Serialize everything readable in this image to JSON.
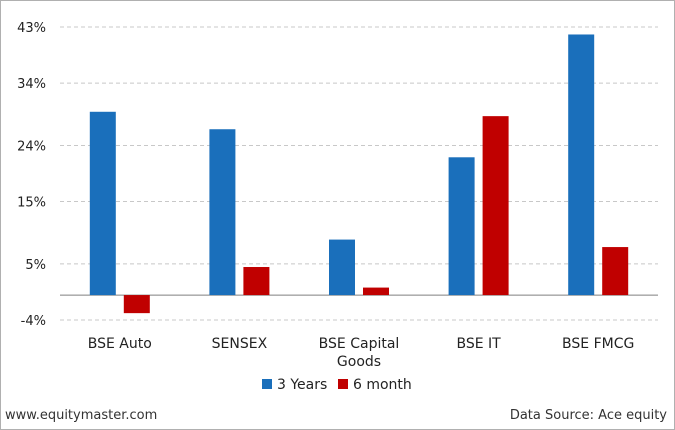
{
  "chart_data": {
    "type": "bar",
    "categories": [
      "BSE Auto",
      "SENSEX",
      "BSE Capital Goods",
      "BSE IT",
      "BSE FMCG"
    ],
    "category_label_lines": [
      [
        "BSE Auto"
      ],
      [
        "SENSEX"
      ],
      [
        "BSE Capital",
        "Goods"
      ],
      [
        "BSE IT"
      ],
      [
        "BSE FMCG"
      ]
    ],
    "series": [
      {
        "name": "3 Years",
        "color": "#1a6fbb",
        "values": [
          29.4,
          26.6,
          8.9,
          22.1,
          41.8
        ]
      },
      {
        "name": "6 month",
        "color": "#c00000",
        "values": [
          -2.9,
          4.5,
          1.2,
          28.7,
          7.7
        ]
      }
    ],
    "yticks": [
      43,
      34,
      24,
      15,
      5,
      -4
    ],
    "ytick_labels": [
      "43%",
      "34%",
      "24%",
      "15%",
      "5%",
      "-4%"
    ],
    "ylim": [
      -4,
      43
    ],
    "grid": true,
    "legend_position": "bottom"
  },
  "footer": {
    "source_left": "www.equitymaster.com",
    "source_right": "Data Source: Ace equity"
  }
}
